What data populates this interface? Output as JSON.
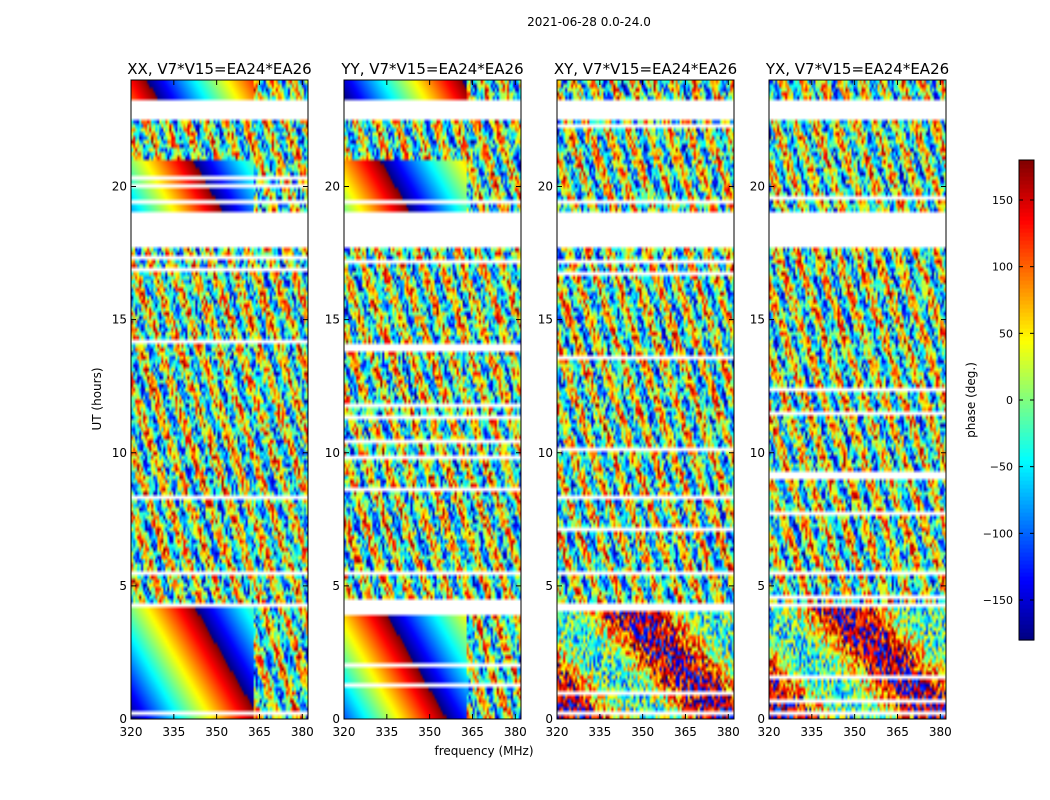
{
  "figure": {
    "suptitle": "2021-06-28 0.0-24.0",
    "xlabel": "frequency (MHz)",
    "ylabel": "UT (hours)"
  },
  "chart_data": {
    "type": "heatmap",
    "colormap": "jet",
    "title": "2021-06-28 0.0-24.0",
    "xlabel": "frequency (MHz)",
    "ylabel": "UT (hours)",
    "xlim": [
      320,
      382
    ],
    "ylim": [
      0,
      24
    ],
    "x_ticks": [
      320,
      335,
      350,
      365,
      380
    ],
    "y_ticks": [
      0,
      5,
      10,
      15,
      20
    ],
    "colorbar": {
      "label": "phase (deg.)",
      "range": [
        -180,
        180
      ],
      "ticks": [
        -150,
        -100,
        -50,
        0,
        50,
        100,
        150
      ]
    },
    "panels": [
      {
        "title": "XX, V7*V15=EA24*EA26",
        "pattern": "smooth"
      },
      {
        "title": "YY, V7*V15=EA24*EA26",
        "pattern": "smooth"
      },
      {
        "title": "XY, V7*V15=EA24*EA26",
        "pattern": "noisy"
      },
      {
        "title": "YX, V7*V15=EA24*EA26",
        "pattern": "noisy"
      }
    ],
    "flagged_hours": [
      [
        22.5,
        23.3
      ],
      [
        18.2,
        19.1
      ],
      [
        17.7,
        18.1
      ],
      [
        5.4,
        5.55
      ],
      [
        4.2,
        4.3
      ]
    ]
  }
}
